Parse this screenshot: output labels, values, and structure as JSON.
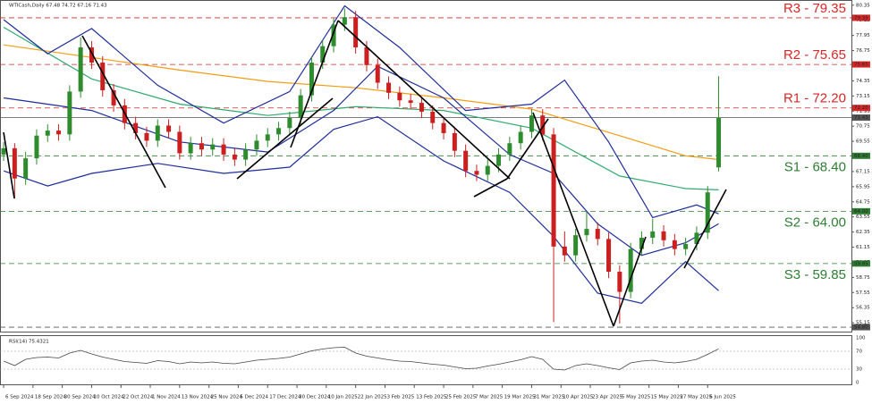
{
  "chart_data": {
    "type": "candlestick",
    "title": "WTICash,Daily  67.48 74.72 67.16 71.43",
    "up_color": "#2e8b2e",
    "down_color": "#cc1f1f",
    "xlim": [
      -0.33,
      77.07
    ],
    "ylim": [
      54.45,
      80.55
    ],
    "yticks": [
      80.35,
      79.15,
      77.95,
      76.75,
      75.55,
      74.35,
      73.15,
      71.95,
      70.75,
      69.55,
      68.35,
      67.15,
      65.95,
      64.75,
      63.55,
      62.35,
      61.15,
      59.95,
      58.75,
      57.55,
      56.35,
      55.15
    ],
    "xticks": [
      {
        "value": 0,
        "label": "6 Sep 2024"
      },
      {
        "value": 2.67,
        "label": "18 Sep 2024"
      },
      {
        "value": 5.33,
        "label": "30 Sep 2024"
      },
      {
        "value": 8,
        "label": "10 Oct 2024"
      },
      {
        "value": 10.67,
        "label": "22 Oct 2024"
      },
      {
        "value": 13.33,
        "label": "1 Nov 2024"
      },
      {
        "value": 16,
        "label": "13 Nov 2024"
      },
      {
        "value": 18.67,
        "label": "25 Nov 2024"
      },
      {
        "value": 21.33,
        "label": "5 Dec 2024"
      },
      {
        "value": 24,
        "label": "17 Dec 2024"
      },
      {
        "value": 26.67,
        "label": "30 Dec 2024"
      },
      {
        "value": 29.33,
        "label": "10 Jan 2025"
      },
      {
        "value": 32,
        "label": "22 Jan 2025"
      },
      {
        "value": 34.67,
        "label": "3 Feb 2025"
      },
      {
        "value": 37.33,
        "label": "13 Feb 2025"
      },
      {
        "value": 40,
        "label": "25 Feb 2025"
      },
      {
        "value": 42.67,
        "label": "7 Mar 2025"
      },
      {
        "value": 45.33,
        "label": "19 Mar 2025"
      },
      {
        "value": 48,
        "label": "31 Mar 2025"
      },
      {
        "value": 50.67,
        "label": "10 Apr 2025"
      },
      {
        "value": 53.33,
        "label": "23 Apr 2025"
      },
      {
        "value": 56,
        "label": "5 May 2025"
      },
      {
        "value": 58.67,
        "label": "15 May 2025"
      },
      {
        "value": 61.33,
        "label": "27 May 2025"
      },
      {
        "value": 64,
        "label": "6 Jun 2025"
      }
    ],
    "open": [
      68.5,
      69.0,
      66.6,
      68.2,
      70.0,
      70.4,
      70.1,
      73.5,
      77.0,
      75.8,
      73.6,
      72.4,
      71.0,
      70.2,
      69.6,
      70.8,
      70.3,
      68.6,
      69.4,
      68.9,
      69.3,
      68.5,
      68.1,
      68.9,
      69.6,
      70.1,
      70.6,
      71.4,
      73.2,
      75.8,
      77.1,
      78.8,
      79.4,
      77.0,
      75.6,
      74.2,
      73.4,
      72.8,
      72.6,
      71.9,
      71.0,
      70.2,
      68.8,
      67.2,
      66.9,
      67.6,
      68.5,
      69.4,
      70.3,
      71.6,
      70.1,
      61.2,
      60.5,
      62.1,
      62.6,
      61.8,
      59.2,
      57.6,
      61.0,
      61.9,
      62.4,
      61.7,
      61.0,
      61.4,
      62.3,
      67.48
    ],
    "high": [
      69.5,
      69.4,
      68.7,
      70.5,
      70.9,
      70.9,
      74.0,
      77.8,
      77.5,
      76.3,
      74.1,
      72.9,
      71.5,
      70.7,
      71.3,
      71.3,
      70.8,
      69.9,
      69.9,
      69.8,
      69.8,
      69.0,
      69.4,
      70.1,
      70.6,
      71.1,
      71.9,
      73.7,
      76.3,
      77.6,
      79.3,
      80.1,
      79.9,
      77.5,
      76.1,
      74.7,
      73.9,
      73.3,
      73.1,
      72.4,
      71.5,
      70.7,
      69.3,
      67.7,
      68.1,
      69.0,
      69.9,
      70.8,
      72.1,
      72.1,
      70.6,
      62.4,
      62.6,
      64.0,
      63.1,
      62.3,
      59.7,
      61.5,
      62.4,
      63.4,
      62.9,
      62.2,
      61.9,
      62.8,
      66.0,
      74.72
    ],
    "low": [
      68.0,
      65.0,
      66.1,
      67.7,
      69.5,
      69.6,
      69.6,
      73.0,
      75.3,
      73.1,
      71.9,
      70.5,
      69.7,
      69.1,
      69.1,
      69.8,
      68.1,
      68.1,
      68.4,
      68.4,
      68.0,
      67.6,
      67.6,
      68.4,
      69.1,
      69.6,
      70.1,
      70.9,
      72.7,
      75.3,
      76.6,
      78.3,
      76.5,
      75.1,
      73.7,
      72.9,
      72.3,
      72.1,
      71.4,
      70.5,
      69.7,
      68.3,
      66.7,
      66.4,
      66.4,
      67.1,
      68.0,
      68.9,
      69.8,
      69.6,
      55.2,
      60.0,
      60.0,
      61.6,
      61.3,
      58.7,
      55.1,
      57.1,
      60.5,
      61.4,
      61.2,
      60.5,
      60.5,
      60.9,
      61.8,
      67.16
    ],
    "close": [
      69.0,
      66.6,
      68.2,
      70.0,
      70.4,
      70.1,
      73.5,
      77.0,
      75.8,
      73.6,
      72.4,
      71.0,
      70.2,
      69.6,
      70.8,
      70.3,
      68.6,
      69.4,
      68.9,
      69.3,
      68.5,
      68.1,
      68.9,
      69.6,
      70.1,
      70.6,
      71.4,
      73.2,
      75.8,
      77.1,
      78.8,
      79.4,
      77.0,
      75.6,
      74.2,
      73.4,
      72.8,
      72.6,
      71.9,
      71.0,
      70.2,
      68.8,
      67.2,
      66.9,
      67.6,
      68.5,
      69.4,
      70.3,
      71.6,
      70.1,
      61.2,
      60.5,
      62.1,
      62.6,
      61.8,
      59.2,
      57.6,
      61.0,
      61.9,
      62.4,
      61.7,
      61.0,
      61.4,
      62.3,
      65.5,
      71.43
    ],
    "overlays": [
      {
        "color": "#f39c12",
        "x": [
          0,
          8,
          16,
          24,
          32,
          40,
          48,
          56,
          62,
          65
        ],
        "values": [
          77.2,
          76.2,
          75.2,
          74.3,
          73.8,
          73.0,
          72.1,
          70.0,
          68.4,
          68.1
        ]
      },
      {
        "color": "#2eaa6e",
        "x": [
          0,
          8,
          16,
          24,
          32,
          40,
          48,
          56,
          62,
          65
        ],
        "values": [
          78.6,
          74.5,
          72.5,
          71.6,
          72.3,
          72.0,
          70.6,
          66.8,
          65.8,
          65.7
        ]
      },
      {
        "color": "#1f2d9c",
        "x": [
          0,
          4,
          8,
          14,
          20,
          26,
          31,
          36,
          42,
          48,
          51,
          55,
          59,
          63,
          65
        ],
        "values": [
          79.2,
          76.5,
          78.5,
          74.0,
          71.0,
          73.5,
          80.3,
          77.0,
          72.0,
          72.5,
          74.4,
          69.5,
          63.5,
          64.5,
          63.8
        ]
      },
      {
        "color": "#1f2d9c",
        "x": [
          0,
          8,
          16,
          24,
          30,
          34,
          40,
          46,
          50,
          54,
          58,
          62,
          65
        ],
        "values": [
          73.0,
          72.0,
          69.5,
          68.7,
          72.0,
          75.5,
          73.0,
          68.5,
          67.0,
          63.0,
          60.5,
          61.5,
          63.0
        ]
      },
      {
        "color": "#1f2d9c",
        "x": [
          0,
          4,
          8,
          14,
          20,
          26,
          30,
          34,
          40,
          46,
          50,
          54,
          58,
          62,
          65
        ],
        "values": [
          67.2,
          66.0,
          67.0,
          67.8,
          67.0,
          67.5,
          70.5,
          71.5,
          68.0,
          65.5,
          62.0,
          57.5,
          56.7,
          60.0,
          57.7
        ]
      }
    ],
    "levels": [
      {
        "name": "R3 - 79.35",
        "value": 79.35,
        "label": "79.35",
        "color": "#d62728"
      },
      {
        "name": "R2 - 75.65",
        "value": 75.65,
        "label": "75.65",
        "color": "#d62728"
      },
      {
        "name": "R1 - 72.20",
        "value": 72.2,
        "label": "72.20",
        "color": "#d62728"
      },
      {
        "value": 71.43,
        "label": "71.43",
        "color": "#555555"
      },
      {
        "name": "S1 - 68.40",
        "value": 68.4,
        "label": "68.40",
        "color": "#2e7d32"
      },
      {
        "name": "S2 - 64.00",
        "value": 64,
        "label": "64.00",
        "color": "#2e7d32"
      },
      {
        "name": "S3 - 59.85",
        "value": 59.85,
        "label": "59.85",
        "color": "#2e7d32"
      },
      {
        "value": 54.8,
        "label": "54.80",
        "color": "#555555"
      }
    ],
    "rsi": {
      "title": "RSI(14) 75.4321",
      "color": "#444444",
      "ylim": [
        0,
        100
      ],
      "yticks": [
        100,
        70,
        30,
        0
      ],
      "values": [
        48,
        38,
        52,
        56,
        57,
        55,
        66,
        72,
        64,
        57,
        52,
        47,
        45,
        43,
        49,
        47,
        42,
        46,
        44,
        46,
        43,
        42,
        46,
        50,
        52,
        54,
        57,
        64,
        71,
        75,
        78,
        79,
        66,
        59,
        55,
        51,
        48,
        47,
        44,
        41,
        39,
        35,
        31,
        32,
        37,
        41,
        46,
        51,
        58,
        52,
        30,
        28,
        38,
        42,
        38,
        33,
        29,
        44,
        48,
        50,
        46,
        44,
        47,
        52,
        63,
        75.4321
      ]
    }
  }
}
